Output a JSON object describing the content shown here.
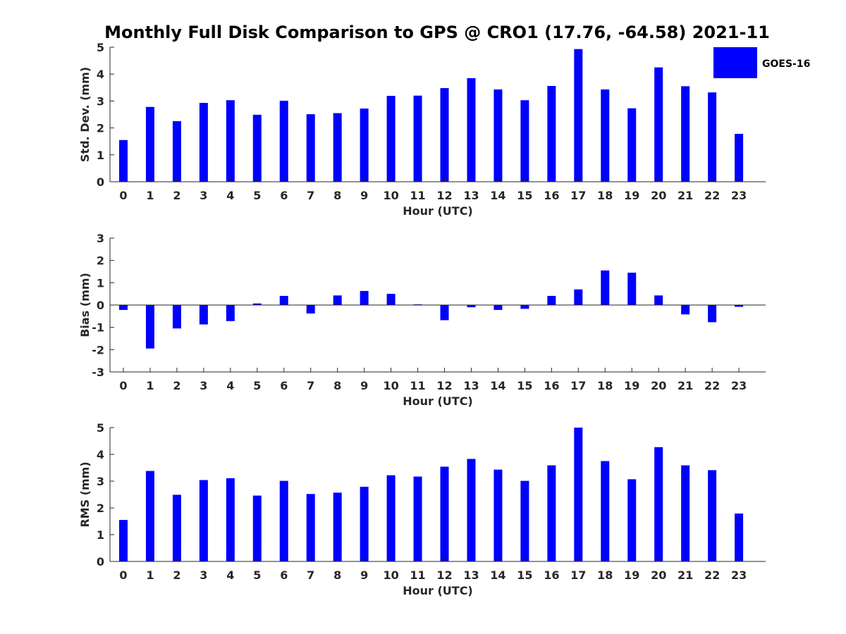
{
  "chart_data": [
    {
      "type": "bar",
      "title": "Monthly Full Disk Comparison to GPS @ CRO1 (17.76, -64.58) 2021-11",
      "xlabel": "Hour (UTC)",
      "ylabel": "Std. Dev. (mm)",
      "categories": [
        "0",
        "1",
        "2",
        "3",
        "4",
        "5",
        "6",
        "7",
        "8",
        "9",
        "10",
        "11",
        "12",
        "13",
        "14",
        "15",
        "16",
        "17",
        "18",
        "19",
        "20",
        "21",
        "22",
        "23"
      ],
      "ylim": [
        0,
        5
      ],
      "yticks": [
        "0",
        "1",
        "2",
        "3",
        "4",
        "5"
      ],
      "series": [
        {
          "name": "GOES-16",
          "values": [
            1.55,
            2.78,
            2.25,
            2.93,
            3.03,
            2.49,
            3.01,
            2.51,
            2.55,
            2.72,
            3.19,
            3.2,
            3.48,
            3.85,
            3.43,
            3.03,
            3.56,
            4.93,
            3.43,
            2.73,
            4.25,
            3.55,
            3.32,
            1.78
          ]
        }
      ],
      "legend": {
        "position": "top-right",
        "entries": [
          "GOES-16"
        ]
      },
      "color": "#0000ff",
      "grid": false
    },
    {
      "type": "bar",
      "xlabel": "Hour (UTC)",
      "ylabel": "Bias (mm)",
      "categories": [
        "0",
        "1",
        "2",
        "3",
        "4",
        "5",
        "6",
        "7",
        "8",
        "9",
        "10",
        "11",
        "12",
        "13",
        "14",
        "15",
        "16",
        "17",
        "18",
        "19",
        "20",
        "21",
        "22",
        "23"
      ],
      "ylim": [
        -3,
        3
      ],
      "yticks": [
        "-3",
        "-2",
        "-1",
        "0",
        "1",
        "2",
        "3"
      ],
      "series": [
        {
          "name": "GOES-16",
          "values": [
            -0.22,
            -1.95,
            -1.05,
            -0.87,
            -0.72,
            0.07,
            0.41,
            -0.38,
            0.43,
            0.63,
            0.5,
            0.03,
            -0.68,
            -0.1,
            -0.22,
            -0.17,
            0.41,
            0.7,
            1.55,
            1.45,
            0.43,
            -0.42,
            -0.77,
            -0.08
          ]
        }
      ],
      "color": "#0000ff",
      "grid": false
    },
    {
      "type": "bar",
      "xlabel": "Hour (UTC)",
      "ylabel": "RMS (mm)",
      "categories": [
        "0",
        "1",
        "2",
        "3",
        "4",
        "5",
        "6",
        "7",
        "8",
        "9",
        "10",
        "11",
        "12",
        "13",
        "14",
        "15",
        "16",
        "17",
        "18",
        "19",
        "20",
        "21",
        "22",
        "23"
      ],
      "ylim": [
        0,
        5
      ],
      "yticks": [
        "0",
        "1",
        "2",
        "3",
        "4",
        "5"
      ],
      "series": [
        {
          "name": "GOES-16",
          "values": [
            1.55,
            3.38,
            2.49,
            3.04,
            3.11,
            2.46,
            3.01,
            2.52,
            2.57,
            2.79,
            3.22,
            3.17,
            3.54,
            3.83,
            3.43,
            3.01,
            3.59,
            5.0,
            3.75,
            3.07,
            4.27,
            3.59,
            3.41,
            1.79
          ]
        }
      ],
      "color": "#0000ff",
      "grid": false
    }
  ]
}
